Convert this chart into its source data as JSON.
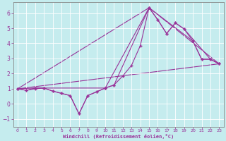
{
  "xlabel": "Windchill (Refroidissement éolien,°C)",
  "background_color": "#c5ecee",
  "line_color": "#993399",
  "grid_color": "#b0d8dc",
  "spine_color": "#666666",
  "xlim": [
    -0.5,
    23.5
  ],
  "ylim": [
    -1.5,
    6.7
  ],
  "xticks": [
    0,
    1,
    2,
    3,
    4,
    5,
    6,
    7,
    8,
    9,
    10,
    11,
    12,
    13,
    14,
    15,
    16,
    17,
    18,
    19,
    20,
    21,
    22,
    23
  ],
  "yticks": [
    -1,
    0,
    1,
    2,
    3,
    4,
    5,
    6
  ],
  "line1_x": [
    0,
    1,
    2,
    3,
    4,
    5,
    6,
    7,
    8,
    9,
    10,
    11,
    12,
    13,
    14,
    15,
    16,
    17,
    18,
    19,
    20,
    21,
    22,
    23
  ],
  "line1_y": [
    1.0,
    0.9,
    1.0,
    1.05,
    0.85,
    0.7,
    0.55,
    -0.65,
    0.55,
    0.8,
    1.05,
    1.25,
    1.85,
    2.55,
    3.85,
    6.35,
    5.55,
    4.65,
    5.35,
    4.95,
    4.15,
    2.95,
    2.95,
    2.65
  ],
  "line2_x": [
    0,
    2,
    3,
    4,
    5,
    6,
    7,
    8,
    9,
    10,
    11,
    15,
    20,
    21,
    22,
    23
  ],
  "line2_y": [
    1.0,
    1.05,
    1.05,
    0.85,
    0.7,
    0.55,
    -0.65,
    0.55,
    0.8,
    1.05,
    1.25,
    6.35,
    4.15,
    2.95,
    2.95,
    2.65
  ],
  "line3_x": [
    0,
    1,
    2,
    3,
    10,
    15,
    16,
    17,
    18,
    19,
    22,
    23
  ],
  "line3_y": [
    1.0,
    0.9,
    1.05,
    1.05,
    1.05,
    6.35,
    5.55,
    4.65,
    5.35,
    4.95,
    2.95,
    2.65
  ],
  "line4_x": [
    0,
    23
  ],
  "line4_y": [
    1.0,
    2.65
  ],
  "line5_x": [
    0,
    15,
    23
  ],
  "line5_y": [
    1.0,
    6.35,
    2.65
  ]
}
